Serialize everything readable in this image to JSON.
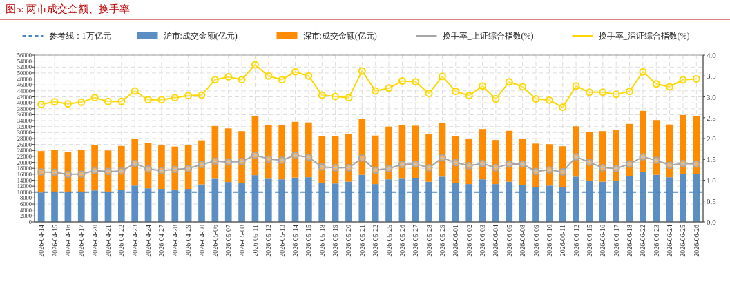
{
  "chart_data": {
    "type": "bar",
    "title": "图5:    两市成交金额、换手率",
    "stacked": true,
    "legend": "top",
    "grid": true,
    "marker": "circle",
    "categories": [
      "2026-04-14",
      "2026-04-15",
      "2026-04-16",
      "2026-04-17",
      "2026-04-20",
      "2026-04-21",
      "2026-04-22",
      "2026-04-23",
      "2026-04-24",
      "2026-04-27",
      "2026-04-28",
      "2026-04-29",
      "2026-04-30",
      "2026-05-06",
      "2026-05-07",
      "2026-05-08",
      "2026-05-11",
      "2026-05-12",
      "2026-05-13",
      "2026-05-14",
      "2026-05-15",
      "2026-05-18",
      "2026-05-19",
      "2026-05-20",
      "2026-05-21",
      "2026-05-22",
      "2026-05-25",
      "2026-05-26",
      "2026-05-27",
      "2026-05-28",
      "2026-05-29",
      "2026-06-01",
      "2026-06-02",
      "2026-06-03",
      "2026-06-04",
      "2026-06-05",
      "2026-06-08",
      "2026-06-09",
      "2026-06-10",
      "2026-06-11",
      "2026-06-12",
      "2026-06-15",
      "2026-06-16",
      "2026-06-17",
      "2026-06-18",
      "2026-06-22",
      "2026-06-23",
      "2026-06-24",
      "2026-06-25",
      "2026-06-26"
    ],
    "series": [
      {
        "name": "沪市:成交金额(亿元)",
        "color": "#5b8fc3",
        "values": [
          9900,
          10100,
          10000,
          10000,
          10600,
          10200,
          10800,
          12200,
          11300,
          11100,
          10900,
          11100,
          12600,
          14500,
          13400,
          13100,
          15700,
          14500,
          14300,
          14900,
          15000,
          13000,
          12900,
          13500,
          15800,
          12700,
          14300,
          14500,
          14600,
          13500,
          15200,
          13000,
          12700,
          14300,
          12700,
          13500,
          12500,
          11600,
          12200,
          11700,
          15200,
          13900,
          13500,
          13900,
          15500,
          16900,
          15800,
          15000,
          16000,
          16000
        ]
      },
      {
        "name": "深市:成交金额(亿元)",
        "color": "#ff8c00",
        "values": [
          13900,
          14100,
          13400,
          14200,
          15100,
          13800,
          14700,
          15800,
          15100,
          14800,
          14400,
          14800,
          14800,
          17700,
          18000,
          17400,
          19700,
          17900,
          18100,
          18700,
          18400,
          15900,
          15900,
          15900,
          18900,
          16300,
          17700,
          17900,
          17700,
          16100,
          17900,
          15800,
          15200,
          16900,
          14800,
          17100,
          15300,
          14700,
          13900,
          13700,
          16900,
          16200,
          17000,
          16900,
          17400,
          20400,
          18400,
          17700,
          19900,
          19400
        ]
      },
      {
        "name": "换手率_上证综合指数(%)",
        "type": "line",
        "axis": "y2",
        "color": "#a6a6a6",
        "values": [
          1.2,
          1.19,
          1.14,
          1.15,
          1.23,
          1.21,
          1.22,
          1.4,
          1.27,
          1.23,
          1.26,
          1.28,
          1.38,
          1.46,
          1.44,
          1.45,
          1.6,
          1.51,
          1.48,
          1.6,
          1.55,
          1.32,
          1.3,
          1.3,
          1.53,
          1.24,
          1.28,
          1.38,
          1.39,
          1.3,
          1.54,
          1.42,
          1.35,
          1.4,
          1.3,
          1.39,
          1.39,
          1.21,
          1.25,
          1.2,
          1.56,
          1.43,
          1.3,
          1.28,
          1.39,
          1.56,
          1.48,
          1.36,
          1.4,
          1.39
        ]
      },
      {
        "name": "换手率_深证综合指数(%)",
        "type": "line",
        "axis": "y2",
        "color": "#ffd700",
        "values": [
          2.82,
          2.88,
          2.83,
          2.87,
          2.98,
          2.89,
          2.89,
          3.14,
          2.93,
          2.93,
          2.98,
          3.03,
          3.04,
          3.41,
          3.48,
          3.41,
          3.77,
          3.5,
          3.41,
          3.6,
          3.5,
          3.04,
          3.01,
          2.98,
          3.62,
          3.14,
          3.21,
          3.38,
          3.36,
          3.08,
          3.49,
          3.13,
          3.03,
          3.26,
          2.95,
          3.36,
          3.24,
          2.95,
          2.92,
          2.75,
          3.26,
          3.11,
          3.11,
          3.06,
          3.13,
          3.6,
          3.31,
          3.24,
          3.41,
          3.43
        ]
      }
    ],
    "ylim": [
      0,
      56000
    ],
    "yticks": [
      0,
      2000,
      4000,
      6000,
      8000,
      10000,
      12000,
      14000,
      16000,
      18000,
      20000,
      22000,
      24000,
      26000,
      28000,
      30000,
      32000,
      34000,
      36000,
      38000,
      40000,
      42000,
      44000,
      46000,
      48000,
      50000,
      52000,
      54000,
      56000
    ],
    "y2lim": [
      0,
      4
    ],
    "y2ticks": [
      {
        "value": 0,
        "label": "0.0"
      },
      {
        "value": 0.5,
        "label": "0.5"
      },
      {
        "value": 1,
        "label": "1.0"
      },
      {
        "value": 1.5,
        "label": "1.5"
      },
      {
        "value": 2,
        "label": "2.0"
      },
      {
        "value": 2.5,
        "label": "2.5"
      },
      {
        "value": 3,
        "label": "3.0"
      },
      {
        "value": 3.5,
        "label": "3.5"
      },
      {
        "value": 4,
        "label": "4.0"
      }
    ],
    "ref_lines": [
      {
        "axis": "y",
        "value": 10000,
        "label": "参考线：1万亿元",
        "color": "#4a86c5",
        "line_style": "dashed"
      }
    ]
  }
}
